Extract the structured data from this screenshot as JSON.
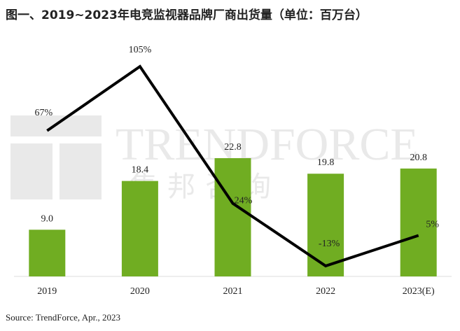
{
  "chart_data": {
    "type": "bar_line",
    "title": "图一、2019~2023年电竞监视器品牌厂商出货量（单位：百万台）",
    "categories": [
      "2019",
      "2020",
      "2021",
      "2022",
      "2023(E)"
    ],
    "series": [
      {
        "type": "bar",
        "color": "#70ad22",
        "values": [
          9.0,
          18.4,
          22.8,
          19.8,
          20.8
        ],
        "value_labels": [
          "9.0",
          "18.4",
          "22.8",
          "19.8",
          "20.8"
        ]
      },
      {
        "type": "line",
        "color": "#000000",
        "values": [
          67,
          105,
          24,
          -13,
          5
        ],
        "value_labels": [
          "67%",
          "105%",
          "24%",
          "-13%",
          "5%"
        ]
      }
    ],
    "watermark": [
      "TRENDFORCE",
      "集邦咨询"
    ],
    "source": "Source: TrendForce, Apr., 2023"
  }
}
